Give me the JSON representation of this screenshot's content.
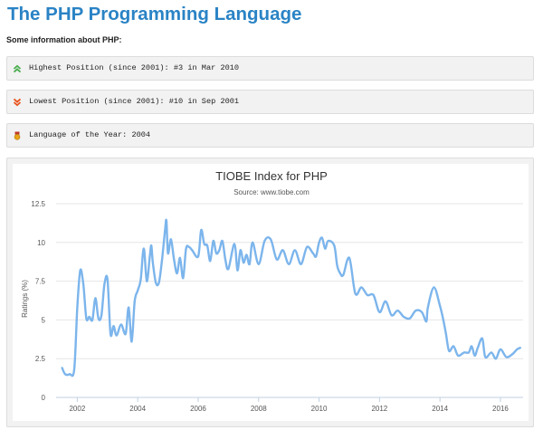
{
  "page": {
    "title": "The PHP Programming Language",
    "intro": "Some information about PHP:"
  },
  "info": {
    "highest": {
      "text": "Highest Position (since 2001): #3 in Mar 2010",
      "icon": "double-chevron-up-icon",
      "color": "#4caf50"
    },
    "lowest": {
      "text": "Lowest Position (since 2001): #10 in Sep 2001",
      "icon": "double-chevron-down-icon",
      "color": "#e8541e"
    },
    "language_of_year": {
      "text": "Language of the Year: 2004",
      "icon": "medal-icon",
      "color": "#e8a317"
    }
  },
  "chart_data": {
    "type": "line",
    "title": "TIOBE Index for PHP",
    "subtitle": "Source: www.tiobe.com",
    "xlabel": "",
    "ylabel": "Ratings (%)",
    "xlim": [
      2001.3,
      2016.75
    ],
    "ylim": [
      0,
      12.5
    ],
    "x_ticks": [
      "2002",
      "2004",
      "2006",
      "2008",
      "2010",
      "2012",
      "2014",
      "2016"
    ],
    "y_ticks": [
      "0",
      "2.5",
      "5",
      "7.5",
      "10",
      "12.5"
    ],
    "grid": "horizontal",
    "line_color": "#7cb5ec",
    "series": [
      {
        "name": "",
        "x": [
          2001.5,
          2001.6,
          2001.75,
          2001.9,
          2002.0,
          2002.1,
          2002.2,
          2002.3,
          2002.4,
          2002.5,
          2002.6,
          2002.7,
          2002.8,
          2002.9,
          2003.0,
          2003.1,
          2003.2,
          2003.3,
          2003.45,
          2003.6,
          2003.7,
          2003.8,
          2003.9,
          2004.0,
          2004.1,
          2004.2,
          2004.3,
          2004.4,
          2004.45,
          2004.5,
          2004.6,
          2004.7,
          2004.8,
          2004.9,
          2004.95,
          2005.0,
          2005.1,
          2005.2,
          2005.3,
          2005.4,
          2005.5,
          2005.6,
          2005.7,
          2005.8,
          2006.0,
          2006.1,
          2006.2,
          2006.3,
          2006.4,
          2006.5,
          2006.6,
          2006.7,
          2006.8,
          2006.9,
          2007.0,
          2007.2,
          2007.3,
          2007.4,
          2007.5,
          2007.6,
          2007.7,
          2007.8,
          2008.0,
          2008.2,
          2008.4,
          2008.6,
          2008.8,
          2009.0,
          2009.2,
          2009.4,
          2009.6,
          2009.8,
          2009.9,
          2010.0,
          2010.1,
          2010.2,
          2010.3,
          2010.5,
          2010.6,
          2010.7,
          2010.8,
          2011.0,
          2011.2,
          2011.4,
          2011.6,
          2011.8,
          2012.0,
          2012.2,
          2012.4,
          2012.6,
          2012.8,
          2013.0,
          2013.2,
          2013.4,
          2013.55,
          2013.6,
          2013.8,
          2014.0,
          2014.1,
          2014.2,
          2014.3,
          2014.45,
          2014.6,
          2014.8,
          2014.95,
          2015.05,
          2015.15,
          2015.25,
          2015.4,
          2015.5,
          2015.7,
          2015.85,
          2016.0,
          2016.2,
          2016.4,
          2016.55,
          2016.65
        ],
        "values": [
          1.9,
          1.5,
          1.5,
          1.8,
          5.8,
          8.2,
          7.3,
          5.1,
          5.2,
          5.0,
          6.4,
          5.1,
          5.3,
          7.3,
          7.6,
          4.1,
          4.6,
          4.0,
          4.7,
          4.1,
          5.8,
          3.6,
          6.2,
          6.9,
          7.6,
          9.6,
          7.5,
          9.1,
          9.8,
          8.7,
          7.4,
          7.4,
          8.8,
          10.7,
          11.4,
          9.3,
          10.2,
          8.9,
          8.0,
          9.0,
          7.7,
          9.6,
          9.7,
          9.5,
          9.1,
          10.8,
          9.9,
          9.8,
          8.8,
          10.1,
          9.3,
          9.5,
          10.1,
          8.9,
          8.3,
          9.9,
          8.2,
          9.5,
          8.7,
          9.2,
          8.6,
          10.0,
          8.6,
          10.1,
          10.2,
          8.9,
          9.5,
          8.6,
          9.5,
          8.6,
          9.7,
          9.3,
          9.1,
          10.0,
          10.3,
          9.6,
          10.1,
          9.8,
          8.5,
          8.0,
          7.9,
          9.0,
          6.7,
          7.1,
          6.6,
          6.6,
          5.5,
          6.2,
          5.3,
          5.6,
          5.2,
          5.1,
          5.6,
          5.5,
          4.9,
          5.8,
          7.1,
          5.9,
          5.1,
          4.1,
          3.0,
          3.3,
          2.7,
          2.9,
          2.9,
          3.3,
          2.7,
          3.2,
          3.8,
          2.6,
          2.9,
          2.5,
          3.1,
          2.6,
          2.8,
          3.1,
          3.2
        ]
      }
    ]
  }
}
